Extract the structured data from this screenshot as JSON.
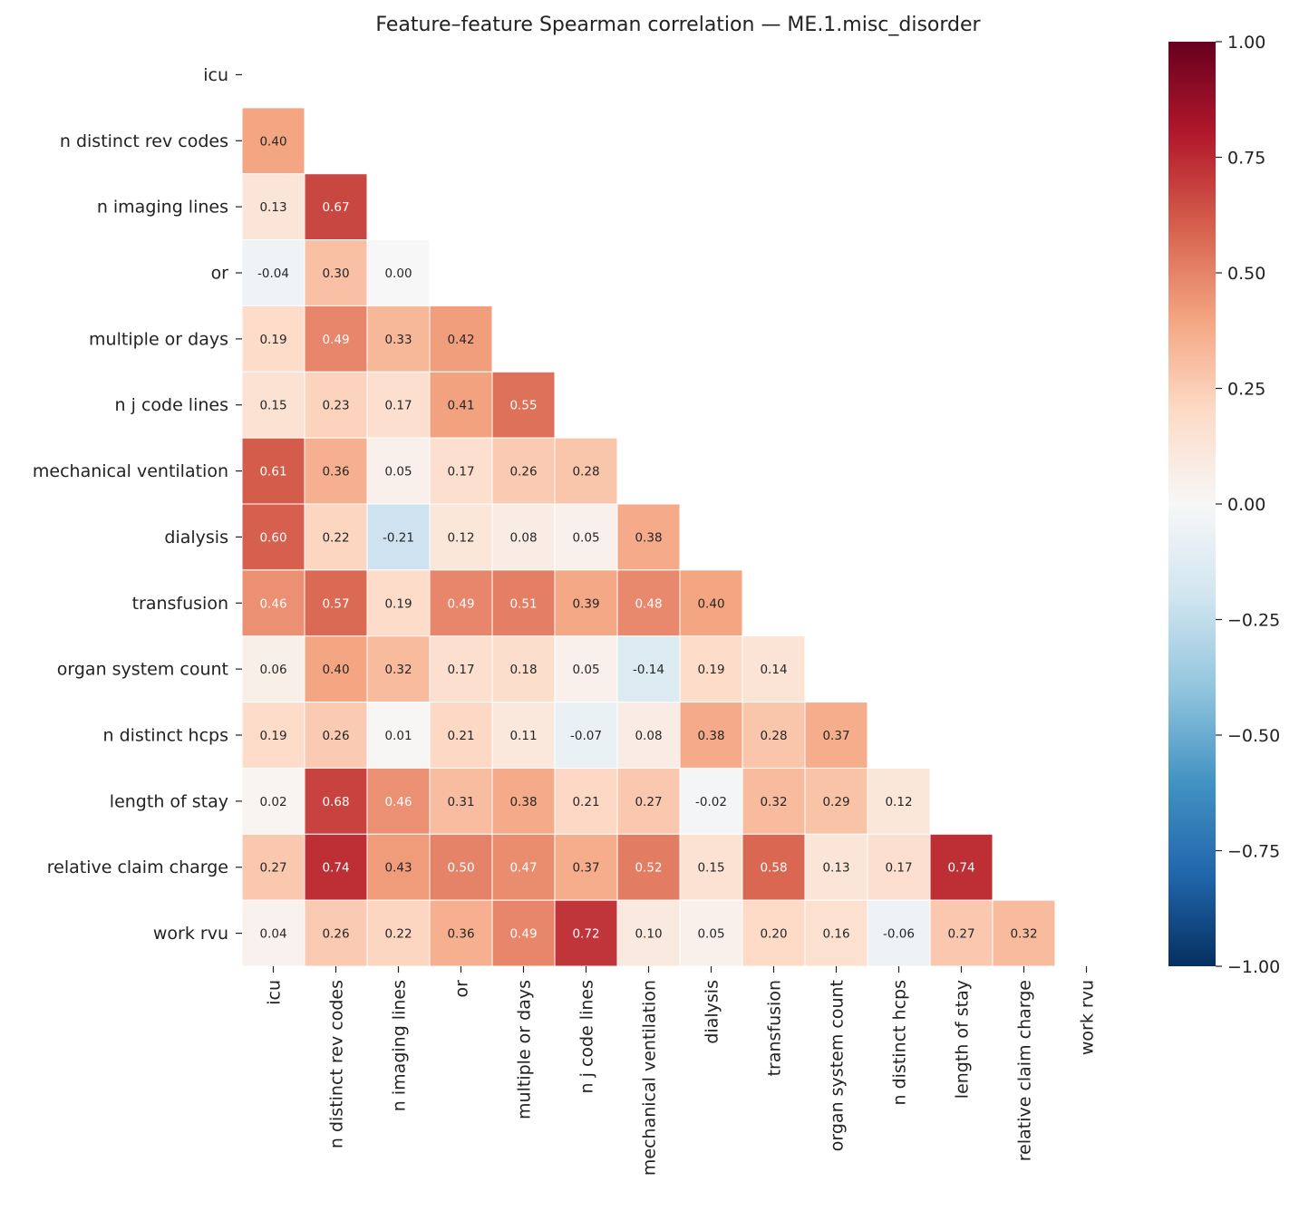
{
  "chart_data": {
    "type": "heatmap",
    "title": "Feature–feature Spearman correlation — ME.1.misc_disorder",
    "labels": [
      "icu",
      "n distinct rev codes",
      "n imaging lines",
      "or",
      "multiple or days",
      "n j code lines",
      "mechanical ventilation",
      "dialysis",
      "transfusion",
      "organ system count",
      "n distinct hcps",
      "length of stay",
      "relative claim charge",
      "work rvu"
    ],
    "mask": "upper triangle including diagonal",
    "lower_triangle_values": [
      [],
      [
        0.4
      ],
      [
        0.13,
        0.67
      ],
      [
        -0.04,
        0.3,
        0.0
      ],
      [
        0.19,
        0.49,
        0.33,
        0.42
      ],
      [
        0.15,
        0.23,
        0.17,
        0.41,
        0.55
      ],
      [
        0.61,
        0.36,
        0.05,
        0.17,
        0.26,
        0.28
      ],
      [
        0.6,
        0.22,
        -0.21,
        0.12,
        0.08,
        0.05,
        0.38
      ],
      [
        0.46,
        0.57,
        0.19,
        0.49,
        0.51,
        0.39,
        0.48,
        0.4
      ],
      [
        0.06,
        0.4,
        0.32,
        0.17,
        0.18,
        0.05,
        -0.14,
        0.19,
        0.14
      ],
      [
        0.19,
        0.26,
        0.01,
        0.21,
        0.11,
        -0.07,
        0.08,
        0.38,
        0.28,
        0.37
      ],
      [
        0.02,
        0.68,
        0.46,
        0.31,
        0.38,
        0.21,
        0.27,
        -0.02,
        0.32,
        0.29,
        0.12
      ],
      [
        0.27,
        0.74,
        0.43,
        0.5,
        0.47,
        0.37,
        0.52,
        0.15,
        0.58,
        0.13,
        0.17,
        0.74
      ],
      [
        0.04,
        0.26,
        0.22,
        0.36,
        0.49,
        0.72,
        0.1,
        0.05,
        0.2,
        0.16,
        -0.06,
        0.27,
        0.32
      ]
    ],
    "colormap": "RdBu_r",
    "vmin": -1,
    "vmax": 1,
    "colorbar_ticks": [
      1.0,
      0.75,
      0.5,
      0.25,
      0.0,
      -0.25,
      -0.5,
      -0.75,
      -1.0
    ],
    "colorbar_tick_labels": [
      "1.00",
      "0.75",
      "0.50",
      "0.25",
      "0.00",
      "−0.25",
      "−0.50",
      "−0.75",
      "−1.00"
    ],
    "colorbar_stops": [
      "#053061",
      "#2166ac",
      "#4393c3",
      "#92c5de",
      "#d1e5f0",
      "#f7f7f7",
      "#fddbc7",
      "#f4a582",
      "#d6604d",
      "#b2182b",
      "#67001f"
    ]
  }
}
